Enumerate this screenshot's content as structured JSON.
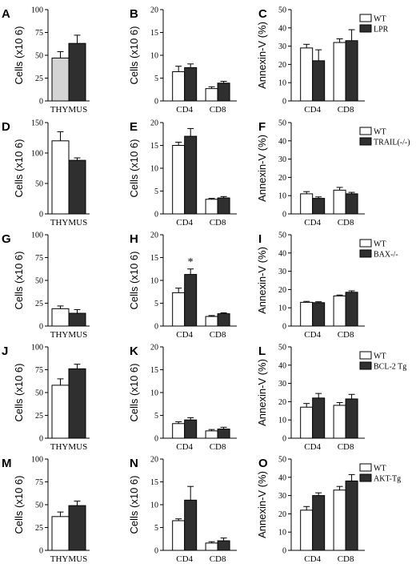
{
  "chart_data": [
    {
      "panel": "A",
      "type": "bar",
      "ylabel": "Cells (x10 6)",
      "ylim": [
        0,
        100
      ],
      "yticks": [
        0,
        25,
        50,
        75,
        100
      ],
      "categories": [
        "THYMUS"
      ],
      "series": [
        {
          "name": "WT",
          "values": [
            47
          ],
          "errors": [
            7
          ]
        },
        {
          "name": "LPR",
          "values": [
            63
          ],
          "errors": [
            9
          ]
        }
      ]
    },
    {
      "panel": "B",
      "type": "bar",
      "ylabel": "Cells (x10 6)",
      "ylim": [
        0,
        20
      ],
      "yticks": [
        0,
        5,
        10,
        15,
        20
      ],
      "categories": [
        "CD4",
        "CD8"
      ],
      "series": [
        {
          "name": "WT",
          "values": [
            6.4,
            2.7
          ],
          "errors": [
            1.2,
            0.4
          ]
        },
        {
          "name": "LPR",
          "values": [
            7.3,
            3.9
          ],
          "errors": [
            0.8,
            0.4
          ]
        }
      ]
    },
    {
      "panel": "C",
      "type": "bar",
      "ylabel": "Annexin-V (%)",
      "ylim": [
        0,
        50
      ],
      "yticks": [
        0,
        10,
        20,
        30,
        40,
        50
      ],
      "categories": [
        "CD4",
        "CD8"
      ],
      "series": [
        {
          "name": "WT",
          "values": [
            29,
            32
          ],
          "errors": [
            2,
            2
          ]
        },
        {
          "name": "LPR",
          "values": [
            22,
            33
          ],
          "errors": [
            6,
            6
          ]
        }
      ],
      "legend": [
        "WT",
        "LPR"
      ]
    },
    {
      "panel": "D",
      "type": "bar",
      "ylabel": "Cells (x10 6)",
      "ylim": [
        0,
        150
      ],
      "yticks": [
        0,
        50,
        100,
        150
      ],
      "categories": [
        "THYMUS"
      ],
      "series": [
        {
          "name": "WT",
          "values": [
            120
          ],
          "errors": [
            15
          ]
        },
        {
          "name": "TRAIL(-/-)",
          "values": [
            88
          ],
          "errors": [
            4
          ]
        }
      ]
    },
    {
      "panel": "E",
      "type": "bar",
      "ylabel": "Cells (x10 6)",
      "ylim": [
        0,
        20
      ],
      "yticks": [
        0,
        5,
        10,
        15,
        20
      ],
      "categories": [
        "CD4",
        "CD8"
      ],
      "series": [
        {
          "name": "WT",
          "values": [
            15,
            3.2
          ],
          "errors": [
            0.7,
            0.2
          ]
        },
        {
          "name": "TRAIL(-/-)",
          "values": [
            17,
            3.5
          ],
          "errors": [
            1.7,
            0.3
          ]
        }
      ]
    },
    {
      "panel": "F",
      "type": "bar",
      "ylabel": "Annexin-V (%)",
      "ylim": [
        0,
        50
      ],
      "yticks": [
        0,
        10,
        20,
        30,
        40,
        50
      ],
      "categories": [
        "CD4",
        "CD8"
      ],
      "series": [
        {
          "name": "WT",
          "values": [
            11,
            13
          ],
          "errors": [
            1.2,
            1.5
          ]
        },
        {
          "name": "TRAIL(-/-)",
          "values": [
            8.5,
            11
          ],
          "errors": [
            0.8,
            0.8
          ]
        }
      ],
      "legend": [
        "WT",
        "TRAIL(-/-)"
      ]
    },
    {
      "panel": "G",
      "type": "bar",
      "ylabel": "Cells (x10 6)",
      "ylim": [
        0,
        100
      ],
      "yticks": [
        0,
        25,
        50,
        75,
        100
      ],
      "categories": [
        "THYMUS"
      ],
      "series": [
        {
          "name": "WT",
          "values": [
            19
          ],
          "errors": [
            3
          ]
        },
        {
          "name": "BAX-/-",
          "values": [
            14
          ],
          "errors": [
            4
          ]
        }
      ]
    },
    {
      "panel": "H",
      "type": "bar",
      "ylabel": "Cells (x10 6)",
      "ylim": [
        0,
        20
      ],
      "yticks": [
        0,
        5,
        10,
        15,
        20
      ],
      "categories": [
        "CD4",
        "CD8"
      ],
      "series": [
        {
          "name": "WT",
          "values": [
            7.3,
            2.1
          ],
          "errors": [
            1,
            0.2
          ]
        },
        {
          "name": "BAX-/-",
          "values": [
            11.3,
            2.7
          ],
          "errors": [
            1.2,
            0.2
          ]
        }
      ],
      "annotations": [
        "*"
      ]
    },
    {
      "panel": "I",
      "type": "bar",
      "ylabel": "Annexin-V (%)",
      "ylim": [
        0,
        50
      ],
      "yticks": [
        0,
        10,
        20,
        30,
        40,
        50
      ],
      "categories": [
        "CD4",
        "CD8"
      ],
      "series": [
        {
          "name": "WT",
          "values": [
            13,
            16.5
          ],
          "errors": [
            0.5,
            0.5
          ]
        },
        {
          "name": "BAX-/-",
          "values": [
            12.8,
            18.5
          ],
          "errors": [
            0.5,
            0.8
          ]
        }
      ],
      "legend": [
        "WT",
        "BAX-/-"
      ]
    },
    {
      "panel": "J",
      "type": "bar",
      "ylabel": "Cells (x10 6)",
      "ylim": [
        0,
        100
      ],
      "yticks": [
        0,
        25,
        50,
        75,
        100
      ],
      "categories": [
        "THYMUS"
      ],
      "series": [
        {
          "name": "WT",
          "values": [
            58
          ],
          "errors": [
            7
          ]
        },
        {
          "name": "BCL-2 Tg",
          "values": [
            76
          ],
          "errors": [
            5
          ]
        }
      ]
    },
    {
      "panel": "K",
      "type": "bar",
      "ylabel": "Cells (x10 6)",
      "ylim": [
        0,
        20
      ],
      "yticks": [
        0,
        5,
        10,
        15,
        20
      ],
      "categories": [
        "CD4",
        "CD8"
      ],
      "series": [
        {
          "name": "WT",
          "values": [
            3.2,
            1.6
          ],
          "errors": [
            0.4,
            0.3
          ]
        },
        {
          "name": "BCL-2 Tg",
          "values": [
            4,
            2
          ],
          "errors": [
            0.5,
            0.4
          ]
        }
      ]
    },
    {
      "panel": "L",
      "type": "bar",
      "ylabel": "Annexin-V (%)",
      "ylim": [
        0,
        50
      ],
      "yticks": [
        0,
        10,
        20,
        30,
        40,
        50
      ],
      "categories": [
        "CD4",
        "CD8"
      ],
      "series": [
        {
          "name": "WT",
          "values": [
            17,
            18
          ],
          "errors": [
            2,
            1.5
          ]
        },
        {
          "name": "BCL-2 Tg",
          "values": [
            22,
            21.5
          ],
          "errors": [
            2.5,
            2.5
          ]
        }
      ],
      "legend": [
        "WT",
        "BCL-2 Tg"
      ]
    },
    {
      "panel": "M",
      "type": "bar",
      "ylabel": "Cells (x10 6)",
      "ylim": [
        0,
        100
      ],
      "yticks": [
        0,
        25,
        50,
        75,
        100
      ],
      "categories": [
        "THYMUS"
      ],
      "series": [
        {
          "name": "WT",
          "values": [
            37
          ],
          "errors": [
            5
          ]
        },
        {
          "name": "AKT-Tg",
          "values": [
            49
          ],
          "errors": [
            5
          ]
        }
      ]
    },
    {
      "panel": "N",
      "type": "bar",
      "ylabel": "Cells (x10 6)",
      "ylim": [
        0,
        20
      ],
      "yticks": [
        0,
        5,
        10,
        15,
        20
      ],
      "categories": [
        "CD4",
        "CD8"
      ],
      "series": [
        {
          "name": "WT",
          "values": [
            6.5,
            1.6
          ],
          "errors": [
            0.4,
            0.3
          ]
        },
        {
          "name": "AKT-Tg",
          "values": [
            11,
            2.1
          ],
          "errors": [
            3,
            0.6
          ]
        }
      ]
    },
    {
      "panel": "O",
      "type": "bar",
      "ylabel": "Annexin-V (%)",
      "ylim": [
        0,
        50
      ],
      "yticks": [
        0,
        10,
        20,
        30,
        40,
        50
      ],
      "categories": [
        "CD4",
        "CD8"
      ],
      "series": [
        {
          "name": "WT",
          "values": [
            22,
            33
          ],
          "errors": [
            2,
            2
          ]
        },
        {
          "name": "AKT-Tg",
          "values": [
            30,
            38
          ],
          "errors": [
            1.5,
            3.5
          ]
        }
      ],
      "legend": [
        "WT",
        "AKT-Tg"
      ]
    }
  ]
}
